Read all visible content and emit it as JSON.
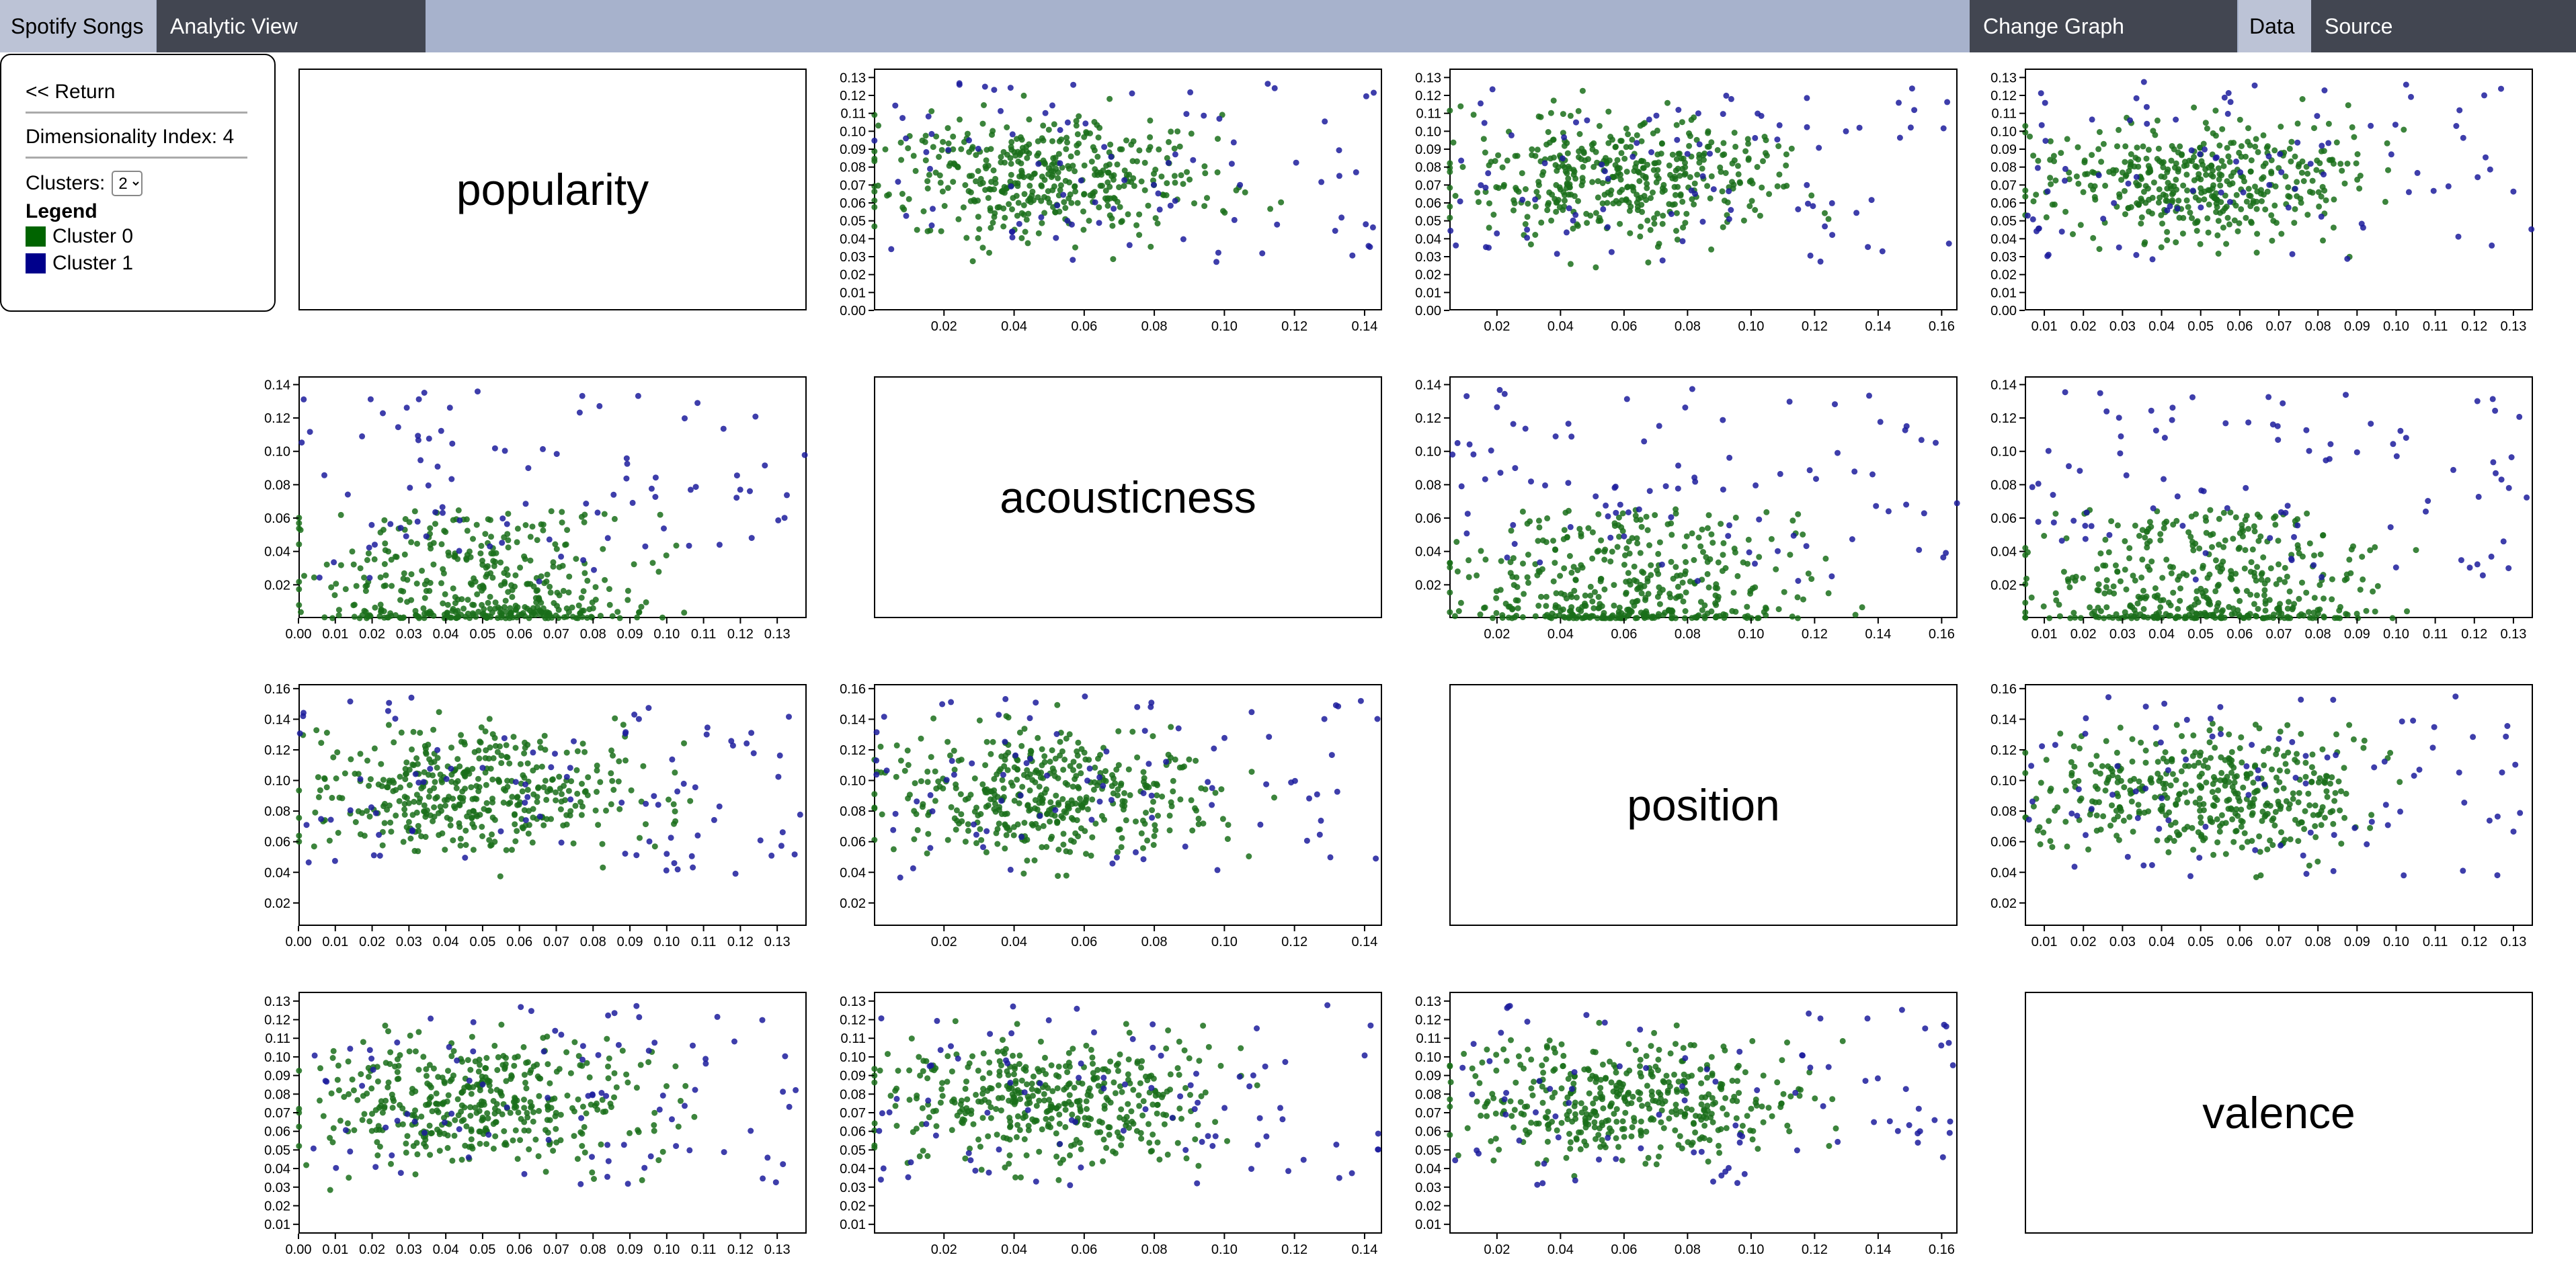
{
  "app": {
    "brand": "Spotify Songs",
    "analytic_view": "Analytic View",
    "change_graph": "Change Graph",
    "data_tab": "Data",
    "source_tab": "Source"
  },
  "panel": {
    "return_label": "<< Return",
    "dimensionality_label": "Dimensionality Index: 4",
    "clusters_label": "Clusters:",
    "clusters_value": "2",
    "legend_title": "Legend",
    "legend": [
      {
        "label": "Cluster 0",
        "color": "#006400"
      },
      {
        "label": "Cluster 1",
        "color": "#00008b"
      }
    ]
  },
  "variables": [
    "popularity",
    "acousticness",
    "position",
    "valence"
  ],
  "chart_data": [
    {
      "type": "label",
      "row": 0,
      "col": 0,
      "title": "popularity"
    },
    {
      "type": "scatter",
      "row": 0,
      "col": 1,
      "xlim": [
        0,
        0.145
      ],
      "ylim": [
        0,
        0.135
      ],
      "xticks": [
        "0.02",
        "0.04",
        "0.06",
        "0.08",
        "0.10",
        "0.12",
        "0.14"
      ],
      "yticks": [
        "0.00",
        "0.01",
        "0.02",
        "0.03",
        "0.04",
        "0.05",
        "0.06",
        "0.07",
        "0.08",
        "0.09",
        "0.10",
        "0.11",
        "0.12",
        "0.13"
      ],
      "series": [
        {
          "cluster": 0,
          "color": "#1a6e1a",
          "count": 420
        },
        {
          "cluster": 1,
          "color": "#1c1c9c",
          "count": 90
        }
      ]
    },
    {
      "type": "scatter",
      "row": 0,
      "col": 2,
      "xlim": [
        0.005,
        0.165
      ],
      "ylim": [
        0,
        0.135
      ],
      "xticks": [
        "0.02",
        "0.04",
        "0.06",
        "0.08",
        "0.10",
        "0.12",
        "0.14",
        "0.16"
      ],
      "yticks": [
        "0.00",
        "0.01",
        "0.02",
        "0.03",
        "0.04",
        "0.05",
        "0.06",
        "0.07",
        "0.08",
        "0.09",
        "0.10",
        "0.11",
        "0.12",
        "0.13"
      ],
      "series": [
        {
          "cluster": 0,
          "color": "#1a6e1a",
          "count": 420
        },
        {
          "cluster": 1,
          "color": "#1c1c9c",
          "count": 90
        }
      ]
    },
    {
      "type": "scatter",
      "row": 0,
      "col": 3,
      "xlim": [
        0.005,
        0.135
      ],
      "ylim": [
        0,
        0.135
      ],
      "xticks": [
        "0.01",
        "0.02",
        "0.03",
        "0.04",
        "0.05",
        "0.06",
        "0.07",
        "0.08",
        "0.09",
        "0.10",
        "0.11",
        "0.12",
        "0.13"
      ],
      "yticks": [
        "0.00",
        "0.01",
        "0.02",
        "0.03",
        "0.04",
        "0.05",
        "0.06",
        "0.07",
        "0.08",
        "0.09",
        "0.10",
        "0.11",
        "0.12",
        "0.13"
      ],
      "series": [
        {
          "cluster": 0,
          "color": "#1a6e1a",
          "count": 420
        },
        {
          "cluster": 1,
          "color": "#1c1c9c",
          "count": 90
        }
      ]
    },
    {
      "type": "scatter",
      "row": 1,
      "col": 0,
      "xlim": [
        0,
        0.138
      ],
      "ylim": [
        0,
        0.145
      ],
      "xticks": [
        "0.00",
        "0.01",
        "0.02",
        "0.03",
        "0.04",
        "0.05",
        "0.06",
        "0.07",
        "0.08",
        "0.09",
        "0.10",
        "0.11",
        "0.12",
        "0.13"
      ],
      "yticks": [
        "0.02",
        "0.04",
        "0.06",
        "0.08",
        "0.10",
        "0.12",
        "0.14"
      ],
      "series": [
        {
          "cluster": 0,
          "color": "#1a6e1a",
          "count": 420
        },
        {
          "cluster": 1,
          "color": "#1c1c9c",
          "count": 90
        }
      ]
    },
    {
      "type": "label",
      "row": 1,
      "col": 1,
      "title": "acousticness"
    },
    {
      "type": "scatter",
      "row": 1,
      "col": 2,
      "xlim": [
        0.005,
        0.165
      ],
      "ylim": [
        0,
        0.145
      ],
      "xticks": [
        "0.02",
        "0.04",
        "0.06",
        "0.08",
        "0.10",
        "0.12",
        "0.14",
        "0.16"
      ],
      "yticks": [
        "0.02",
        "0.04",
        "0.06",
        "0.08",
        "0.10",
        "0.12",
        "0.14"
      ],
      "series": [
        {
          "cluster": 0,
          "color": "#1a6e1a",
          "count": 420
        },
        {
          "cluster": 1,
          "color": "#1c1c9c",
          "count": 90
        }
      ]
    },
    {
      "type": "scatter",
      "row": 1,
      "col": 3,
      "xlim": [
        0.005,
        0.135
      ],
      "ylim": [
        0,
        0.145
      ],
      "xticks": [
        "0.01",
        "0.02",
        "0.03",
        "0.04",
        "0.05",
        "0.06",
        "0.07",
        "0.08",
        "0.09",
        "0.10",
        "0.11",
        "0.12",
        "0.13"
      ],
      "yticks": [
        "0.02",
        "0.04",
        "0.06",
        "0.08",
        "0.10",
        "0.12",
        "0.14"
      ],
      "series": [
        {
          "cluster": 0,
          "color": "#1a6e1a",
          "count": 420
        },
        {
          "cluster": 1,
          "color": "#1c1c9c",
          "count": 90
        }
      ]
    },
    {
      "type": "scatter",
      "row": 2,
      "col": 0,
      "xlim": [
        0,
        0.138
      ],
      "ylim": [
        0.005,
        0.163
      ],
      "xticks": [
        "0.00",
        "0.01",
        "0.02",
        "0.03",
        "0.04",
        "0.05",
        "0.06",
        "0.07",
        "0.08",
        "0.09",
        "0.10",
        "0.11",
        "0.12",
        "0.13"
      ],
      "yticks": [
        "0.02",
        "0.04",
        "0.06",
        "0.08",
        "0.10",
        "0.12",
        "0.14",
        "0.16"
      ],
      "series": [
        {
          "cluster": 0,
          "color": "#1a6e1a",
          "count": 420
        },
        {
          "cluster": 1,
          "color": "#1c1c9c",
          "count": 90
        }
      ]
    },
    {
      "type": "scatter",
      "row": 2,
      "col": 1,
      "xlim": [
        0,
        0.145
      ],
      "ylim": [
        0.005,
        0.163
      ],
      "xticks": [
        "0.02",
        "0.04",
        "0.06",
        "0.08",
        "0.10",
        "0.12",
        "0.14"
      ],
      "yticks": [
        "0.02",
        "0.04",
        "0.06",
        "0.08",
        "0.10",
        "0.12",
        "0.14",
        "0.16"
      ],
      "series": [
        {
          "cluster": 0,
          "color": "#1a6e1a",
          "count": 420
        },
        {
          "cluster": 1,
          "color": "#1c1c9c",
          "count": 90
        }
      ]
    },
    {
      "type": "label",
      "row": 2,
      "col": 2,
      "title": "position"
    },
    {
      "type": "scatter",
      "row": 2,
      "col": 3,
      "xlim": [
        0.005,
        0.135
      ],
      "ylim": [
        0.005,
        0.163
      ],
      "xticks": [
        "0.01",
        "0.02",
        "0.03",
        "0.04",
        "0.05",
        "0.06",
        "0.07",
        "0.08",
        "0.09",
        "0.10",
        "0.11",
        "0.12",
        "0.13"
      ],
      "yticks": [
        "0.02",
        "0.04",
        "0.06",
        "0.08",
        "0.10",
        "0.12",
        "0.14",
        "0.16"
      ],
      "series": [
        {
          "cluster": 0,
          "color": "#1a6e1a",
          "count": 420
        },
        {
          "cluster": 1,
          "color": "#1c1c9c",
          "count": 90
        }
      ]
    },
    {
      "type": "scatter",
      "row": 3,
      "col": 0,
      "xlim": [
        0,
        0.138
      ],
      "ylim": [
        0.005,
        0.135
      ],
      "xticks": [
        "0.00",
        "0.01",
        "0.02",
        "0.03",
        "0.04",
        "0.05",
        "0.06",
        "0.07",
        "0.08",
        "0.09",
        "0.10",
        "0.11",
        "0.12",
        "0.13"
      ],
      "yticks": [
        "0.01",
        "0.02",
        "0.03",
        "0.04",
        "0.05",
        "0.06",
        "0.07",
        "0.08",
        "0.09",
        "0.10",
        "0.11",
        "0.12",
        "0.13"
      ],
      "series": [
        {
          "cluster": 0,
          "color": "#1a6e1a",
          "count": 420
        },
        {
          "cluster": 1,
          "color": "#1c1c9c",
          "count": 90
        }
      ]
    },
    {
      "type": "scatter",
      "row": 3,
      "col": 1,
      "xlim": [
        0,
        0.145
      ],
      "ylim": [
        0.005,
        0.135
      ],
      "xticks": [
        "0.02",
        "0.04",
        "0.06",
        "0.08",
        "0.10",
        "0.12",
        "0.14"
      ],
      "yticks": [
        "0.01",
        "0.02",
        "0.03",
        "0.04",
        "0.05",
        "0.06",
        "0.07",
        "0.08",
        "0.09",
        "0.10",
        "0.11",
        "0.12",
        "0.13"
      ],
      "series": [
        {
          "cluster": 0,
          "color": "#1a6e1a",
          "count": 420
        },
        {
          "cluster": 1,
          "color": "#1c1c9c",
          "count": 90
        }
      ]
    },
    {
      "type": "scatter",
      "row": 3,
      "col": 2,
      "xlim": [
        0.005,
        0.165
      ],
      "ylim": [
        0.005,
        0.135
      ],
      "xticks": [
        "0.02",
        "0.04",
        "0.06",
        "0.08",
        "0.10",
        "0.12",
        "0.14",
        "0.16"
      ],
      "yticks": [
        "0.01",
        "0.02",
        "0.03",
        "0.04",
        "0.05",
        "0.06",
        "0.07",
        "0.08",
        "0.09",
        "0.10",
        "0.11",
        "0.12",
        "0.13"
      ],
      "series": [
        {
          "cluster": 0,
          "color": "#1a6e1a",
          "count": 420
        },
        {
          "cluster": 1,
          "color": "#1c1c9c",
          "count": 90
        }
      ]
    },
    {
      "type": "label",
      "row": 3,
      "col": 3,
      "title": "valence"
    }
  ]
}
